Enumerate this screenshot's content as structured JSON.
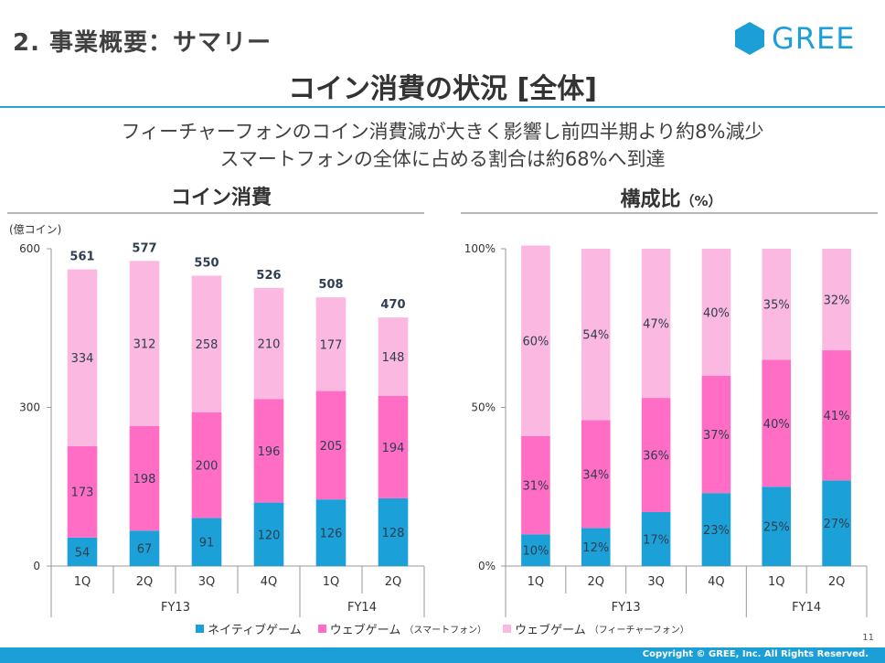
{
  "header": {
    "section_title": "2. 事業概要：サマリー",
    "logo_text": "GREE",
    "main_title": "コイン消費の状況 [全体]",
    "summary_line1": "フィーチャーフォンのコイン消費減が大きく影響し前四半期より約8%減少",
    "summary_line2": "スマートフォンの全体に占める割合は約68%へ到達"
  },
  "colors": {
    "native": "#1ba1d7",
    "web_sp": "#ff6ec4",
    "web_fp": "#fbb8e0",
    "accent": "#1c9fd6"
  },
  "legend": [
    {
      "label": "ネイティブゲーム",
      "sub": ""
    },
    {
      "label": "ウェブゲーム",
      "sub": "（スマートフォン）"
    },
    {
      "label": "ウェブゲーム",
      "sub": "（フィーチャーフォン）"
    }
  ],
  "chart_data": [
    {
      "type": "bar",
      "stacked": true,
      "title": "コイン消費",
      "unit_label": "(億コイン)",
      "ylim": [
        0,
        600
      ],
      "yticks": [
        "0",
        "300",
        "600"
      ],
      "categories": [
        "1Q",
        "2Q",
        "3Q",
        "4Q",
        "1Q",
        "2Q"
      ],
      "groups": [
        {
          "label": "FY13",
          "count": 4
        },
        {
          "label": "FY14",
          "count": 2
        }
      ],
      "totals": [
        561,
        577,
        550,
        526,
        508,
        470
      ],
      "series": [
        {
          "name": "ネイティブゲーム",
          "values": [
            54,
            67,
            91,
            120,
            126,
            128
          ]
        },
        {
          "name": "ウェブゲーム（スマートフォン）",
          "values": [
            173,
            198,
            200,
            196,
            205,
            194
          ]
        },
        {
          "name": "ウェブゲーム（フィーチャーフォン）",
          "values": [
            334,
            312,
            258,
            210,
            177,
            148
          ]
        }
      ]
    },
    {
      "type": "bar",
      "stacked": true,
      "title": "構成比",
      "title_suffix": "（%）",
      "ylim": [
        0,
        100
      ],
      "yticks": [
        "0%",
        "50%",
        "100%"
      ],
      "categories": [
        "1Q",
        "2Q",
        "3Q",
        "4Q",
        "1Q",
        "2Q"
      ],
      "groups": [
        {
          "label": "FY13",
          "count": 4
        },
        {
          "label": "FY14",
          "count": 2
        }
      ],
      "series": [
        {
          "name": "ネイティブゲーム",
          "values": [
            10,
            12,
            17,
            23,
            25,
            27
          ],
          "labels": [
            "10%",
            "12%",
            "17%",
            "23%",
            "25%",
            "27%"
          ]
        },
        {
          "name": "ウェブゲーム（スマートフォン）",
          "values": [
            31,
            34,
            36,
            37,
            40,
            41
          ],
          "labels": [
            "31%",
            "34%",
            "36%",
            "37%",
            "40%",
            "41%"
          ]
        },
        {
          "name": "ウェブゲーム（フィーチャーフォン）",
          "values": [
            60,
            54,
            47,
            40,
            35,
            32
          ],
          "labels": [
            "60%",
            "54%",
            "47%",
            "40%",
            "35%",
            "32%"
          ]
        }
      ]
    }
  ],
  "footer": {
    "page_number": "11",
    "copyright": "Copyright © GREE, Inc. All Rights Reserved."
  }
}
